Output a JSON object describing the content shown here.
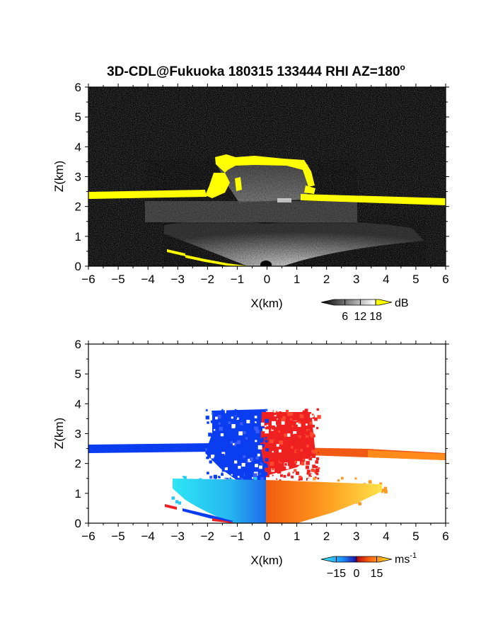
{
  "figure": {
    "title": "3D-CDL@Fukuoka 180315 133444 RHI AZ=180",
    "title_degree": "o"
  },
  "colors": {
    "background_top": "#080808",
    "highlight": "#ffff00",
    "blue": "#0a3cf0",
    "red": "#ee2020",
    "cyan": "#20e0f0",
    "orange": "#ff8c1a",
    "yellow": "#ffe000"
  },
  "chart_data": [
    {
      "type": "heatmap",
      "panel": "top",
      "quantity": "backscatter intensity",
      "xlabel": "X(km)",
      "ylabel": "Z(km)",
      "xlim": [
        -6,
        6
      ],
      "ylim": [
        0,
        6
      ],
      "xticks": [
        -6,
        -5,
        -4,
        -3,
        -2,
        -1,
        0,
        1,
        2,
        3,
        4,
        5,
        6
      ],
      "yticks": [
        0,
        1,
        2,
        3,
        4,
        5,
        6
      ],
      "colorbar": {
        "unit": "dB",
        "ticks": [
          6,
          12,
          18
        ],
        "range": [
          0,
          21
        ],
        "palette": "grayscale-to-yellow"
      },
      "features": {
        "cloud_layer_left": {
          "x": [
            -6,
            -2
          ],
          "z": [
            2.3,
            2.45
          ]
        },
        "cloud_layer_right": {
          "x": [
            1.5,
            6
          ],
          "z": [
            2.15,
            2.4
          ]
        },
        "cloud_turret": {
          "x": [
            -1.8,
            1.4
          ],
          "z_bottom": 2.2,
          "z_top": 3.6
        },
        "boundary_layer_top_km": 1.4
      }
    },
    {
      "type": "heatmap",
      "panel": "bottom",
      "quantity": "radial velocity",
      "xlabel": "X(km)",
      "ylabel": "Z(km)",
      "xlim": [
        -6,
        6
      ],
      "ylim": [
        0,
        6
      ],
      "xticks": [
        -6,
        -5,
        -4,
        -3,
        -2,
        -1,
        0,
        1,
        2,
        3,
        4,
        5,
        6
      ],
      "yticks": [
        0,
        1,
        2,
        3,
        4,
        5,
        6
      ],
      "colorbar": {
        "unit": "ms",
        "unit_exponent": "-1",
        "ticks": [
          -15,
          0,
          15
        ],
        "range": [
          -20,
          20
        ],
        "palette": "cyan-blue-red-yellow"
      },
      "features": {
        "negative_velocity_region": {
          "x": [
            -6,
            0
          ],
          "z": [
            0,
            3.7
          ]
        },
        "positive_velocity_region": {
          "x": [
            0,
            6
          ],
          "z": [
            0,
            3.7
          ]
        }
      }
    }
  ]
}
